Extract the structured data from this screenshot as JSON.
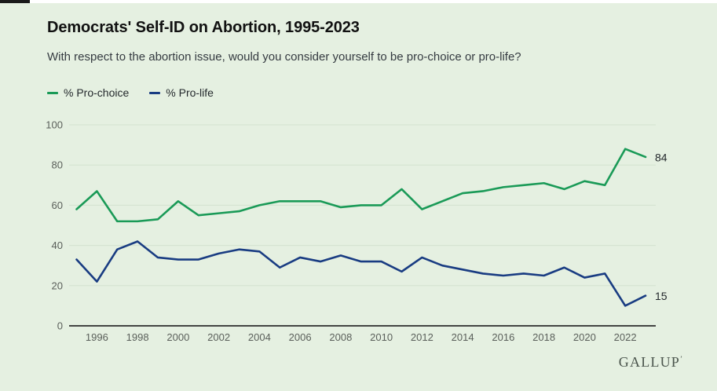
{
  "page": {
    "title": "Democrats' Self-ID on Abortion, 1995-2023",
    "subtitle": "With respect to the abortion issue, would you consider yourself to be pro-choice or pro-life?",
    "brand": "GALLUP",
    "brand_mark": "’"
  },
  "colors": {
    "background": "#e5f0e1",
    "gridline": "#d4e2cf",
    "axis": "#2b2b2b",
    "tick_text": "#5a5f5a",
    "title_text": "#111111",
    "subtitle_text": "#353b41",
    "brand_text": "#4a544c",
    "pro_choice": "#1a9a57",
    "pro_life": "#193c82"
  },
  "chart_data": {
    "type": "line",
    "title": "Democrats' Self-ID on Abortion, 1995-2023",
    "subtitle": "With respect to the abortion issue, would you consider yourself to be pro-choice or pro-life?",
    "xlabel": "",
    "ylabel": "%",
    "ylim": [
      0,
      100
    ],
    "grid": "horizontal",
    "legend_position": "top-left",
    "x": [
      1995,
      1996,
      1997,
      1998,
      1999,
      2000,
      2001,
      2002,
      2003,
      2004,
      2005,
      2006,
      2007,
      2008,
      2009,
      2010,
      2011,
      2012,
      2013,
      2014,
      2015,
      2016,
      2017,
      2018,
      2019,
      2020,
      2021,
      2022,
      2023
    ],
    "x_ticks": [
      1996,
      1998,
      2000,
      2002,
      2004,
      2006,
      2008,
      2010,
      2012,
      2014,
      2016,
      2018,
      2020,
      2022
    ],
    "y_ticks": [
      0,
      20,
      40,
      60,
      80,
      100
    ],
    "series": [
      {
        "id": "pro-choice",
        "name": "% Pro-choice",
        "color": "#1a9a57",
        "end_label": "84",
        "values": [
          58,
          67,
          52,
          52,
          53,
          62,
          55,
          56,
          57,
          60,
          62,
          62,
          62,
          59,
          60,
          60,
          68,
          58,
          62,
          66,
          67,
          69,
          70,
          71,
          68,
          72,
          70,
          88,
          84
        ]
      },
      {
        "id": "pro-life",
        "name": "% Pro-life",
        "color": "#193c82",
        "end_label": "15",
        "values": [
          33,
          22,
          38,
          42,
          34,
          33,
          33,
          36,
          38,
          37,
          29,
          34,
          32,
          35,
          32,
          32,
          27,
          34,
          30,
          28,
          26,
          25,
          26,
          25,
          29,
          24,
          26,
          10,
          15
        ]
      }
    ]
  }
}
